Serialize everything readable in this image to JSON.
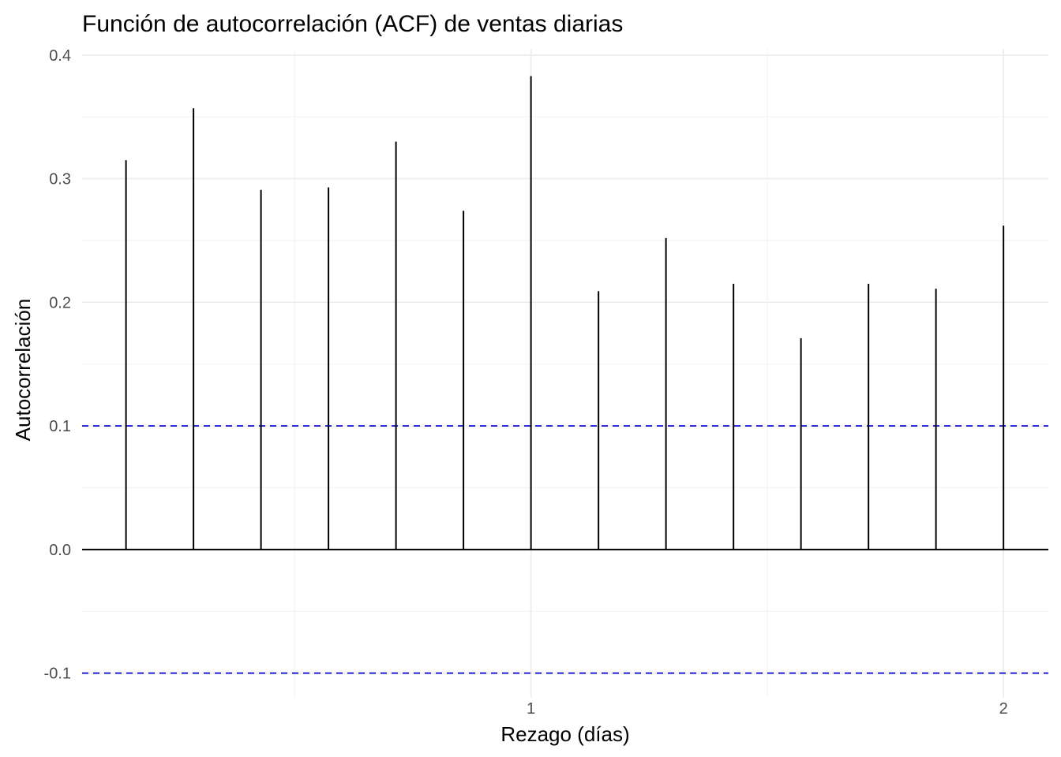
{
  "chart_data": {
    "type": "bar",
    "title": "Función de autocorrelación (ACF) de ventas diarias",
    "xlabel": "Rezago (días)",
    "ylabel": "Autocorrelación",
    "xlim": [
      0.05,
      2.095
    ],
    "ylim": [
      -0.12,
      0.405
    ],
    "x_ticks": [
      1,
      2
    ],
    "x_tick_labels": [
      "1",
      "2"
    ],
    "y_ticks": [
      -0.1,
      0.0,
      0.1,
      0.2,
      0.3,
      0.4
    ],
    "y_tick_labels": [
      "-0.1",
      "0.0",
      "0.1",
      "0.2",
      "0.3",
      "0.4"
    ],
    "grid": true,
    "confidence_bounds": [
      0.1,
      -0.1
    ],
    "x": [
      0.1429,
      0.2857,
      0.4286,
      0.5714,
      0.7143,
      0.8571,
      1.0,
      1.1429,
      1.2857,
      1.4286,
      1.5714,
      1.7143,
      1.8571,
      2.0
    ],
    "values": [
      0.315,
      0.357,
      0.291,
      0.293,
      0.33,
      0.274,
      0.383,
      0.209,
      0.252,
      0.215,
      0.171,
      0.215,
      0.211,
      0.262
    ],
    "colors": {
      "bars": "#000000",
      "confidence": "#0000cc",
      "grid": "#ebebeb"
    }
  }
}
